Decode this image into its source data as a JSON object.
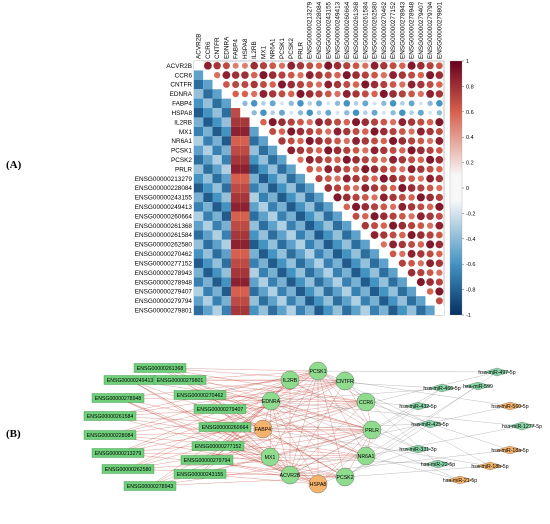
{
  "panels": {
    "a": "(A)",
    "b": "(B)"
  },
  "heatmap": {
    "genes": [
      "ACVR2B",
      "CCR6",
      "CNTFR",
      "EDNRA",
      "FABP4",
      "HSPA8",
      "IL2RB",
      "MX1",
      "NR6A1",
      "PCSK1",
      "PCSK2",
      "PRLR",
      "ENSG00000213279",
      "ENSG00000228084",
      "ENSG00000243155",
      "ENSG00000249413",
      "ENSG00000260664",
      "ENSG00000261368",
      "ENSG00000261584",
      "ENSG00000262580",
      "ENSG00000270462",
      "ENSG00000277152",
      "ENSG00000278943",
      "ENSG00000278948",
      "ENSG00000279407",
      "ENSG00000279794",
      "ENSG00000279801"
    ],
    "colorbar_ticks": [
      "1",
      "0.8",
      "0.6",
      "0.4",
      "0.2",
      "0",
      "-0.2",
      "-0.4",
      "-0.6",
      "-0.8",
      "-1"
    ]
  },
  "network": {
    "nodes": [
      {
        "label": "ENSG00000261368",
        "kind": "lnc",
        "pos": "lnc-0"
      },
      {
        "label": "ENSG00000249413",
        "kind": "lnc",
        "pos": "lnc-1"
      },
      {
        "label": "ENSG00000279801",
        "kind": "lnc",
        "pos": "lnc-2"
      },
      {
        "label": "ENSG00000278948",
        "kind": "lnc",
        "pos": "lnc-3"
      },
      {
        "label": "ENSG00000270462",
        "kind": "lnc",
        "pos": "lnc-4"
      },
      {
        "label": "ENSG00000279407",
        "kind": "lnc",
        "pos": "lnc-5"
      },
      {
        "label": "ENSG00000261584",
        "kind": "lnc",
        "pos": "lnc-6"
      },
      {
        "label": "ENSG00000260664",
        "kind": "lnc",
        "pos": "lnc-7"
      },
      {
        "label": "ENSG00000228084",
        "kind": "lnc",
        "pos": "lnc-8"
      },
      {
        "label": "ENSG00000277152",
        "kind": "lnc",
        "pos": "lnc-9"
      },
      {
        "label": "ENSG00000213279",
        "kind": "lnc",
        "pos": "lnc-10"
      },
      {
        "label": "ENSG00000279794",
        "kind": "lnc",
        "pos": "lnc-11"
      },
      {
        "label": "ENSG00000262580",
        "kind": "lnc",
        "pos": "lnc-12"
      },
      {
        "label": "ENSG00000243155",
        "kind": "lnc",
        "pos": "lnc-13"
      },
      {
        "label": "ENSG00000278943",
        "kind": "lnc",
        "pos": "lnc-14"
      },
      {
        "label": "PCSK1",
        "kind": "gene",
        "pos": "g-0"
      },
      {
        "label": "IL2RB",
        "kind": "gene",
        "pos": "g-1"
      },
      {
        "label": "CNTFR",
        "kind": "gene",
        "pos": "g-2"
      },
      {
        "label": "EDNRA",
        "kind": "gene",
        "pos": "g-3"
      },
      {
        "label": "CCR6",
        "kind": "gene",
        "pos": "g-4"
      },
      {
        "label": "FABP4",
        "kind": "hub",
        "pos": "g-5"
      },
      {
        "label": "PRLR",
        "kind": "gene",
        "pos": "g-6"
      },
      {
        "label": "MX1",
        "kind": "gene",
        "pos": "g-7"
      },
      {
        "label": "NR6A1",
        "kind": "gene",
        "pos": "g-8"
      },
      {
        "label": "ACVR2B",
        "kind": "gene",
        "pos": "g-9"
      },
      {
        "label": "PCSK2",
        "kind": "gene",
        "pos": "g-10"
      },
      {
        "label": "HSPA8",
        "kind": "hub",
        "pos": "g-11"
      },
      {
        "label": "hsa-miR-497-5p",
        "kind": "mir",
        "pos": "m-0"
      },
      {
        "label": "hsa-miR-599",
        "kind": "mir",
        "pos": "m-1"
      },
      {
        "label": "hsa-miR-466-5p",
        "kind": "mir",
        "pos": "m-2"
      },
      {
        "label": "hsa-miR-432-5p",
        "kind": "mir",
        "pos": "m-3"
      },
      {
        "label": "hsa-miR-560-5p",
        "kind": "mir-o",
        "pos": "m-4"
      },
      {
        "label": "hsa-miR-425-5p",
        "kind": "mir",
        "pos": "m-5"
      },
      {
        "label": "hsa-miR-1277-5p",
        "kind": "mir",
        "pos": "m-6"
      },
      {
        "label": "hsa-miR-331-3p",
        "kind": "mir",
        "pos": "m-7"
      },
      {
        "label": "hsa-miR-18a-5p",
        "kind": "mir-o",
        "pos": "m-8"
      },
      {
        "label": "hsa-miR-22-5p",
        "kind": "mir",
        "pos": "m-9"
      },
      {
        "label": "hsa-miR-18b-5p",
        "kind": "mir-o",
        "pos": "m-10"
      },
      {
        "label": "hsa-miR-21-5p",
        "kind": "mir-o",
        "pos": "m-11"
      }
    ]
  },
  "colors": {
    "pos": "#b2182b",
    "neg": "#2166ac",
    "lnc": "#6fcf7a",
    "gene": "#8fdc8f",
    "hub": "#f4b36b",
    "mir": "#86d4a6",
    "edge_red": "#c0392b",
    "edge_gray": "#555555"
  }
}
